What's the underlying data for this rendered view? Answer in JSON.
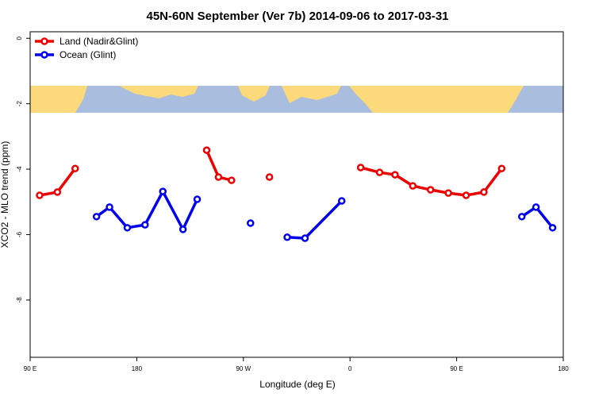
{
  "chart_data": {
    "type": "line",
    "title": "45N-60N September (Ver 7b)   2014-09-06 to 2017-03-31",
    "x_label": "Longitude (deg E)",
    "y_label": "XCO2 - MLO trend (ppm)",
    "x": [
      98,
      113,
      128,
      146,
      157,
      172,
      187,
      202,
      219,
      231,
      239,
      249,
      260,
      276,
      292,
      307,
      322,
      353,
      369,
      385,
      398,
      413,
      428,
      443,
      458,
      473,
      488,
      505,
      517,
      531
    ],
    "series": [
      {
        "name": "Land (Nadir&Glint)",
        "color": "#ee0000",
        "values": [
          -4.8,
          -4.7,
          -3.98,
          null,
          null,
          null,
          null,
          null,
          null,
          null,
          -3.42,
          -4.24,
          -4.34,
          null,
          -4.24,
          null,
          null,
          null,
          -3.95,
          -4.1,
          -4.17,
          -4.51,
          -4.63,
          -4.73,
          -4.8,
          -4.7,
          -3.98,
          null,
          null,
          null
        ]
      },
      {
        "name": "Ocean (Glint)",
        "color": "#0000ee",
        "values": [
          null,
          null,
          null,
          -5.45,
          -5.16,
          -5.79,
          -5.7,
          -4.68,
          -5.84,
          -4.92,
          null,
          null,
          null,
          -5.65,
          null,
          -6.08,
          -6.11,
          -4.97,
          null,
          null,
          null,
          null,
          null,
          null,
          null,
          null,
          null,
          -5.45,
          -5.16,
          -5.79
        ]
      }
    ],
    "xlim": [
      90,
      540
    ],
    "xticks": [
      {
        "value": 90,
        "label": "90 E"
      },
      180,
      {
        "value": 270,
        "label": "90 W"
      },
      {
        "value": 360,
        "label": "0"
      },
      {
        "value": 450,
        "label": "90 E"
      },
      {
        "value": 540,
        "label": "180"
      }
    ],
    "ylim": [
      -9.75,
      0.2
    ],
    "yticks": [
      0,
      -2,
      -4,
      -6,
      -8
    ],
    "legend": "top-left"
  }
}
